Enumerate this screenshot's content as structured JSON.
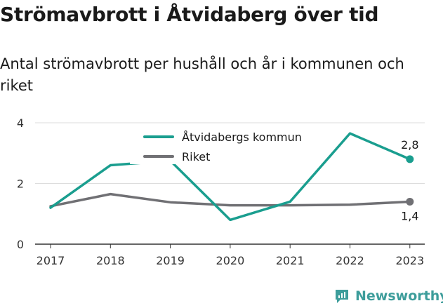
{
  "title": "Strömavbrott i Åtvidaberg över tid",
  "subtitle": "Antal strömavbrott per hushåll och år i kommunen och riket",
  "brand": {
    "name": "Newsworthy",
    "icon": "newsworthy-chat-chart-icon"
  },
  "colors": {
    "kommun": "#1a9e8f",
    "riket": "#707074",
    "axis": "#333333",
    "grid": "#dddddd"
  },
  "chart_data": {
    "type": "line",
    "x": [
      "2017",
      "2018",
      "2019",
      "2020",
      "2021",
      "2022",
      "2023"
    ],
    "ylim": [
      0,
      4
    ],
    "yticks": [
      "0",
      "2",
      "4"
    ],
    "grid": true,
    "legend_position": "top-center",
    "series": [
      {
        "name": "Åtvidabergs kommun",
        "values": [
          1.2,
          2.6,
          2.75,
          0.8,
          1.4,
          3.65,
          2.8
        ],
        "end_label": "2,8"
      },
      {
        "name": "Riket",
        "values": [
          1.25,
          1.65,
          1.38,
          1.28,
          1.28,
          1.3,
          1.4
        ],
        "end_label": "1,4"
      }
    ]
  }
}
